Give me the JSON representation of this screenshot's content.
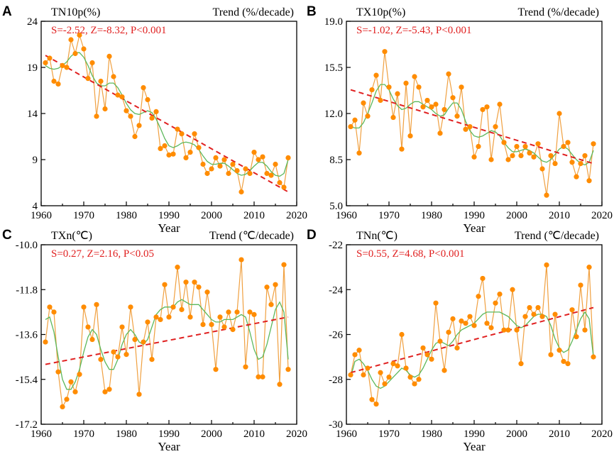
{
  "chart_data": [
    {
      "type": "line",
      "panel_label": "A",
      "title": "TN10p(%)",
      "trend_label": "Trend (%/decade)",
      "stat": "S=-2.52, Z=-8.32, P<0.001",
      "xlabel": "Year",
      "xlim": [
        1960,
        2020
      ],
      "ylim": [
        4,
        24
      ],
      "xticks": [
        "1960",
        "1970",
        "1980",
        "1990",
        "2000",
        "2010",
        "2020"
      ],
      "yticks": [
        "4",
        "9",
        "14",
        "19",
        "24"
      ],
      "ytick_values": [
        4,
        9,
        14,
        19,
        24
      ],
      "x": [
        1961,
        1962,
        1963,
        1964,
        1965,
        1966,
        1967,
        1968,
        1969,
        1970,
        1971,
        1972,
        1973,
        1974,
        1975,
        1976,
        1977,
        1978,
        1979,
        1980,
        1981,
        1982,
        1983,
        1984,
        1985,
        1986,
        1987,
        1988,
        1989,
        1990,
        1991,
        1992,
        1993,
        1994,
        1995,
        1996,
        1997,
        1998,
        1999,
        2000,
        2001,
        2002,
        2003,
        2004,
        2005,
        2006,
        2007,
        2008,
        2009,
        2010,
        2011,
        2012,
        2013,
        2014,
        2015,
        2016,
        2017,
        2018
      ],
      "values": [
        19.5,
        20.0,
        17.5,
        17.2,
        19.2,
        19.0,
        22.0,
        20.5,
        22.5,
        21.0,
        17.8,
        19.5,
        13.7,
        17.5,
        14.5,
        20.2,
        18.0,
        16.0,
        15.8,
        14.3,
        13.7,
        11.5,
        12.7,
        16.8,
        15.5,
        13.5,
        14.2,
        10.2,
        10.5,
        9.5,
        9.6,
        12.3,
        11.8,
        9.2,
        9.8,
        11.8,
        10.3,
        8.5,
        7.5,
        8.0,
        9.2,
        8.3,
        9.0,
        7.5,
        8.5,
        7.8,
        5.5,
        8.0,
        7.5,
        9.8,
        9.0,
        9.3,
        7.5,
        7.3,
        8.5,
        6.5,
        6.0,
        9.2
      ],
      "smooth": [
        19.2,
        18.9,
        18.8,
        18.9,
        19.2,
        19.6,
        20.2,
        20.6,
        20.6,
        20.1,
        19.2,
        18.1,
        17.3,
        17.0,
        17.0,
        17.3,
        17.3,
        16.8,
        16.0,
        15.1,
        14.4,
        14.0,
        13.9,
        14.1,
        14.3,
        14.1,
        13.4,
        12.4,
        11.3,
        10.5,
        10.3,
        10.5,
        10.8,
        10.9,
        10.8,
        10.6,
        10.1,
        9.4,
        8.8,
        8.5,
        8.5,
        8.6,
        8.6,
        8.3,
        7.9,
        7.5,
        7.3,
        7.4,
        7.8,
        8.3,
        8.7,
        8.7,
        8.3,
        7.7,
        7.3,
        7.2,
        7.5,
        9.0
      ],
      "trend_line": {
        "x": [
          1961,
          2018
        ],
        "y": [
          20.3,
          5.5
        ]
      }
    },
    {
      "type": "line",
      "panel_label": "B",
      "title": "TX10p(%)",
      "trend_label": "Trend (%/decade)",
      "stat": "S=-1.02, Z=-5.43, P<0.001",
      "xlabel": "Year",
      "xlim": [
        1960,
        2020
      ],
      "ylim": [
        5,
        19
      ],
      "xticks": [
        "1960",
        "1970",
        "1980",
        "1990",
        "2000",
        "2010",
        "2020"
      ],
      "yticks": [
        "5.0",
        "8.5",
        "12.0",
        "15.5",
        "19.0"
      ],
      "ytick_values": [
        5,
        8.5,
        12,
        15.5,
        19
      ],
      "x": [
        1961,
        1962,
        1963,
        1964,
        1965,
        1966,
        1967,
        1968,
        1969,
        1970,
        1971,
        1972,
        1973,
        1974,
        1975,
        1976,
        1977,
        1978,
        1979,
        1980,
        1981,
        1982,
        1983,
        1984,
        1985,
        1986,
        1987,
        1988,
        1989,
        1990,
        1991,
        1992,
        1993,
        1994,
        1995,
        1996,
        1997,
        1998,
        1999,
        2000,
        2001,
        2002,
        2003,
        2004,
        2005,
        2006,
        2007,
        2008,
        2009,
        2010,
        2011,
        2012,
        2013,
        2014,
        2015,
        2016,
        2017,
        2018
      ],
      "values": [
        11.0,
        11.5,
        9.0,
        12.8,
        11.8,
        13.8,
        14.9,
        13.0,
        16.7,
        14.0,
        11.7,
        13.5,
        9.3,
        14.3,
        10.3,
        14.8,
        14.0,
        12.5,
        13.0,
        12.5,
        12.7,
        10.5,
        12.3,
        15.0,
        13.2,
        11.8,
        14.0,
        10.8,
        11.0,
        8.7,
        9.5,
        12.3,
        12.5,
        8.5,
        11.0,
        12.7,
        9.8,
        8.5,
        8.8,
        9.5,
        8.8,
        9.5,
        9.0,
        8.7,
        9.7,
        7.8,
        5.8,
        8.8,
        8.2,
        12.0,
        9.5,
        9.8,
        8.3,
        7.2,
        8.2,
        8.8,
        6.9,
        9.7
      ],
      "smooth": [
        11.0,
        10.9,
        10.9,
        11.3,
        12.0,
        12.8,
        13.7,
        14.2,
        14.2,
        13.8,
        13.1,
        12.6,
        12.3,
        12.4,
        12.7,
        12.9,
        12.9,
        12.7,
        12.5,
        12.3,
        12.0,
        11.8,
        11.9,
        12.4,
        12.8,
        12.8,
        12.3,
        11.4,
        10.7,
        10.3,
        10.2,
        10.3,
        10.5,
        10.7,
        10.6,
        10.3,
        9.8,
        9.4,
        9.1,
        9.1,
        9.2,
        9.3,
        9.2,
        9.0,
        8.7,
        8.4,
        8.3,
        8.5,
        8.9,
        9.3,
        9.5,
        9.3,
        8.9,
        8.5,
        8.2,
        8.1,
        8.3,
        9.2
      ],
      "trend_line": {
        "x": [
          1961,
          2018
        ],
        "y": [
          13.8,
          8.2
        ]
      }
    },
    {
      "type": "line",
      "panel_label": "C",
      "title": "TXn(℃)",
      "trend_label": "Trend (℃/decade)",
      "stat": "S=0.27, Z=2.16, P<0.05",
      "xlabel": "Year",
      "xlim": [
        1960,
        2020
      ],
      "ylim": [
        -17.2,
        -10
      ],
      "xticks": [
        "1960",
        "1970",
        "1980",
        "1990",
        "2000",
        "2010",
        "2020"
      ],
      "yticks": [
        "-17.2",
        "-15.4",
        "-13.6",
        "-11.8",
        "-10.0"
      ],
      "ytick_values": [
        -17.2,
        -15.4,
        -13.6,
        -11.8,
        -10.0
      ],
      "x": [
        1961,
        1962,
        1963,
        1964,
        1965,
        1966,
        1967,
        1968,
        1969,
        1970,
        1971,
        1972,
        1973,
        1974,
        1975,
        1976,
        1977,
        1978,
        1979,
        1980,
        1981,
        1982,
        1983,
        1984,
        1985,
        1986,
        1987,
        1988,
        1989,
        1990,
        1991,
        1992,
        1993,
        1994,
        1995,
        1996,
        1997,
        1998,
        1999,
        2000,
        2001,
        2002,
        2003,
        2004,
        2005,
        2006,
        2007,
        2008,
        2009,
        2010,
        2011,
        2012,
        2013,
        2014,
        2015,
        2016,
        2017,
        2018
      ],
      "values": [
        -13.9,
        -12.5,
        -12.7,
        -15.1,
        -16.5,
        -16.2,
        -15.5,
        -15.9,
        -15.2,
        -12.5,
        -13.3,
        -13.8,
        -12.4,
        -14.6,
        -15.9,
        -15.8,
        -14.3,
        -14.5,
        -13.3,
        -14.4,
        -12.5,
        -13.8,
        -16.0,
        -13.9,
        -13.1,
        -14.6,
        -12.9,
        -13.0,
        -11.6,
        -12.9,
        -12.5,
        -10.9,
        -12.6,
        -11.5,
        -12.9,
        -11.5,
        -11.7,
        -13.2,
        -11.9,
        -13.2,
        -15.0,
        -12.9,
        -13.3,
        -12.7,
        -13.4,
        -12.7,
        -10.6,
        -14.9,
        -12.7,
        -12.8,
        -15.3,
        -15.3,
        -11.7,
        -12.4,
        -11.6,
        -15.6,
        -10.8,
        -15.0
      ],
      "smooth": [
        -13.0,
        -12.9,
        -13.5,
        -14.5,
        -15.4,
        -15.8,
        -15.8,
        -15.5,
        -15.0,
        -14.3,
        -13.7,
        -13.4,
        -13.6,
        -14.2,
        -14.7,
        -15.0,
        -15.0,
        -14.6,
        -14.0,
        -13.6,
        -13.4,
        -13.6,
        -13.9,
        -14.0,
        -13.8,
        -13.3,
        -12.8,
        -12.6,
        -12.5,
        -12.5,
        -12.5,
        -12.3,
        -12.2,
        -12.3,
        -12.4,
        -12.4,
        -12.4,
        -12.6,
        -12.8,
        -13.0,
        -13.1,
        -13.1,
        -13.0,
        -13.0,
        -13.0,
        -12.9,
        -12.8,
        -12.9,
        -13.5,
        -14.2,
        -14.6,
        -14.5,
        -14.0,
        -13.3,
        -12.6,
        -12.3,
        -12.7,
        -14.6
      ],
      "trend_line": {
        "x": [
          1961,
          2018
        ],
        "y": [
          -14.8,
          -12.9
        ]
      }
    },
    {
      "type": "line",
      "panel_label": "D",
      "title": "TNn(℃)",
      "trend_label": "Trend (℃/decade)",
      "stat": "S=0.55, Z=4.68, P<0.001",
      "xlabel": "Year",
      "xlim": [
        1960,
        2020
      ],
      "ylim": [
        -30,
        -22
      ],
      "xticks": [
        "1960",
        "1970",
        "1980",
        "1990",
        "2000",
        "2010",
        "2020"
      ],
      "yticks": [
        "-30",
        "-28",
        "-26",
        "-24",
        "-22"
      ],
      "ytick_values": [
        -30,
        -28,
        -26,
        -24,
        -22
      ],
      "x": [
        1961,
        1962,
        1963,
        1964,
        1965,
        1966,
        1967,
        1968,
        1969,
        1970,
        1971,
        1972,
        1973,
        1974,
        1975,
        1976,
        1977,
        1978,
        1979,
        1980,
        1981,
        1982,
        1983,
        1984,
        1985,
        1986,
        1987,
        1988,
        1989,
        1990,
        1991,
        1992,
        1993,
        1994,
        1995,
        1996,
        1997,
        1998,
        1999,
        2000,
        2001,
        2002,
        2003,
        2004,
        2005,
        2006,
        2007,
        2008,
        2009,
        2010,
        2011,
        2012,
        2013,
        2014,
        2015,
        2016,
        2017,
        2018
      ],
      "values": [
        -27.8,
        -26.9,
        -26.7,
        -27.8,
        -27.5,
        -28.9,
        -29.1,
        -27.7,
        -28.2,
        -27.9,
        -27.3,
        -27.4,
        -26.0,
        -27.5,
        -27.9,
        -28.2,
        -28.0,
        -26.6,
        -26.9,
        -27.1,
        -24.6,
        -26.3,
        -27.6,
        -25.9,
        -25.3,
        -26.6,
        -25.4,
        -25.5,
        -25.2,
        -25.6,
        -24.3,
        -23.5,
        -25.5,
        -25.7,
        -24.6,
        -24.2,
        -25.8,
        -25.8,
        -24.0,
        -25.8,
        -27.3,
        -25.2,
        -24.8,
        -25.1,
        -24.8,
        -25.2,
        -22.9,
        -26.9,
        -25.1,
        -26.7,
        -27.2,
        -27.3,
        -24.9,
        -26.1,
        -23.8,
        -25.8,
        -23.0,
        -27.0
      ],
      "smooth": [
        -27.9,
        -27.2,
        -27.1,
        -27.3,
        -27.6,
        -28.0,
        -28.3,
        -28.4,
        -28.3,
        -28.1,
        -27.9,
        -27.7,
        -27.5,
        -27.6,
        -27.8,
        -27.9,
        -27.8,
        -27.5,
        -27.1,
        -26.7,
        -26.4,
        -26.3,
        -26.4,
        -26.5,
        -26.3,
        -26.0,
        -25.8,
        -25.7,
        -25.6,
        -25.5,
        -25.3,
        -25.1,
        -25.0,
        -25.0,
        -25.0,
        -25.0,
        -25.1,
        -25.2,
        -25.4,
        -25.6,
        -25.7,
        -25.6,
        -25.4,
        -25.2,
        -25.1,
        -25.1,
        -25.2,
        -25.6,
        -26.2,
        -26.6,
        -26.8,
        -26.7,
        -26.3,
        -25.8,
        -25.3,
        -25.0,
        -25.3,
        -27.0
      ],
      "trend_line": {
        "x": [
          1961,
          2018
        ],
        "y": [
          -27.7,
          -24.8
        ]
      }
    }
  ],
  "colors": {
    "observed_line": "#f0a040",
    "observed_marker": "#ff8c00",
    "smooth_line": "#5cb85c",
    "trend_line": "#e02020",
    "stat_text": "#e02020"
  }
}
